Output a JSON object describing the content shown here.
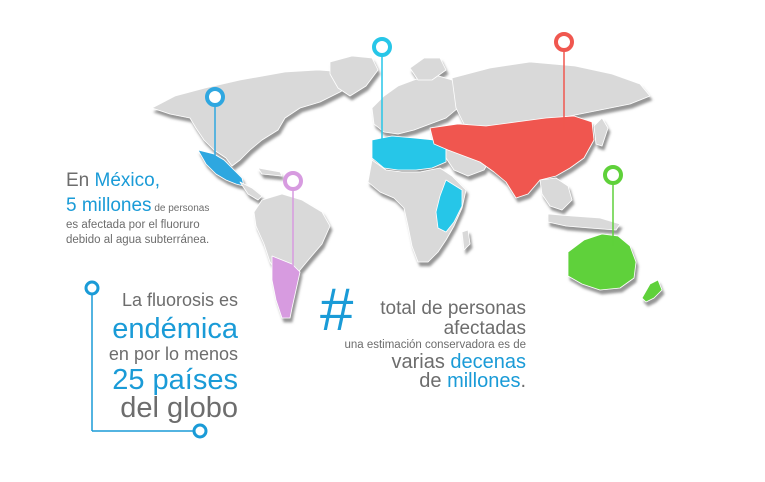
{
  "mexico": {
    "line1_a": "En ",
    "line1_b": "México,",
    "line2_num": "5 millones",
    "line2_small": " de personas",
    "line3": "es afectada por el fluoruro",
    "line4": "debido al agua subterránea."
  },
  "fluorosis": {
    "line1": "La fluorosis es",
    "line2": "endémica",
    "line3": "en por lo menos",
    "line4": "25 países",
    "line5": "del globo"
  },
  "total": {
    "hash": "#",
    "line1": "total de personas",
    "line2": "afectadas",
    "line3": "una estimación conservadora es de",
    "line4_a": "varias ",
    "line4_b": "decenas",
    "line5_a": "de ",
    "line5_b": "millones",
    "line5_c": "."
  },
  "colors": {
    "land": "#d9d9d9",
    "land_shadow": "#a8a8a8",
    "mexico": "#2fa7e0",
    "argentina": "#d79be0",
    "africa_north": "#27c6e8",
    "asia": "#f0574f",
    "australia": "#5fd13a",
    "text_blue": "#1a9bd7",
    "text_gray": "#6d6d6d"
  },
  "pins": [
    {
      "name": "mexico-pin",
      "color": "#2fa7e0"
    },
    {
      "name": "argentina-pin",
      "color": "#d79be0"
    },
    {
      "name": "africa-pin",
      "color": "#27c6e8"
    },
    {
      "name": "asia-pin",
      "color": "#f0574f"
    },
    {
      "name": "australia-pin",
      "color": "#5fd13a"
    }
  ]
}
